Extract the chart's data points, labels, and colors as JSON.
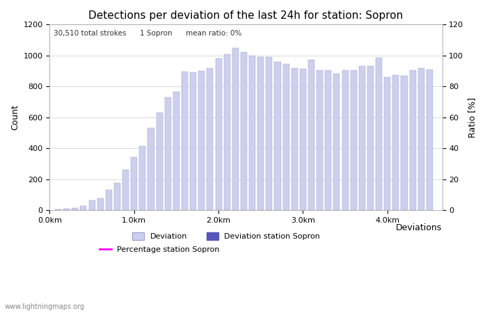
{
  "title": "Detections per deviation of the last 24h for station: Sopron",
  "subtitle": "30,510 total strokes      1 Sopron      mean ratio: 0%",
  "xlabel": "Deviations",
  "ylabel_left": "Count",
  "ylabel_right": "Ratio [%]",
  "ylim_left": [
    0,
    1200
  ],
  "ylim_right": [
    0,
    120
  ],
  "yticks_left": [
    0,
    200,
    400,
    600,
    800,
    1000,
    1200
  ],
  "yticks_right": [
    0,
    20,
    40,
    60,
    80,
    100,
    120
  ],
  "bar_width": 0.075,
  "bar_color": "#cdd0ed",
  "bar_edge_color": "#9999cc",
  "station_bar_color": "#5555bb",
  "percentage_line_color": "#ff00ff",
  "background_color": "#ffffff",
  "watermark": "www.lightningmaps.org",
  "xtick_labels": [
    "0.0km",
    "1.0km",
    "2.0km",
    "3.0km",
    "4.0km"
  ],
  "xtick_positions": [
    0.0,
    1.0,
    2.0,
    3.0,
    4.0
  ],
  "bar_positions": [
    0.1,
    0.2,
    0.3,
    0.4,
    0.5,
    0.6,
    0.7,
    0.8,
    0.9,
    1.0,
    1.1,
    1.2,
    1.3,
    1.4,
    1.5,
    1.6,
    1.7,
    1.8,
    1.9,
    2.0,
    2.1,
    2.2,
    2.3,
    2.4,
    2.5,
    2.6,
    2.7,
    2.8,
    2.9,
    3.0,
    3.1,
    3.2,
    3.3,
    3.4,
    3.5,
    3.6,
    3.7,
    3.8,
    3.9,
    4.0,
    4.1,
    4.2,
    4.3,
    4.4,
    4.5
  ],
  "bar_heights": [
    5,
    10,
    15,
    25,
    65,
    75,
    130,
    175,
    260,
    340,
    415,
    530,
    630,
    730,
    765,
    895,
    890,
    900,
    920,
    980,
    1010,
    1050,
    1020,
    1000,
    990,
    990,
    960,
    945,
    920,
    915,
    970,
    905,
    905,
    880,
    905,
    905,
    930,
    930,
    985,
    860,
    875,
    870,
    905,
    920,
    910
  ],
  "xlim": [
    0.0,
    4.65
  ],
  "grid_color": "#cccccc",
  "grid_linewidth": 0.5,
  "legend_fontsize": 8,
  "title_fontsize": 11,
  "tick_fontsize": 8,
  "label_fontsize": 9
}
